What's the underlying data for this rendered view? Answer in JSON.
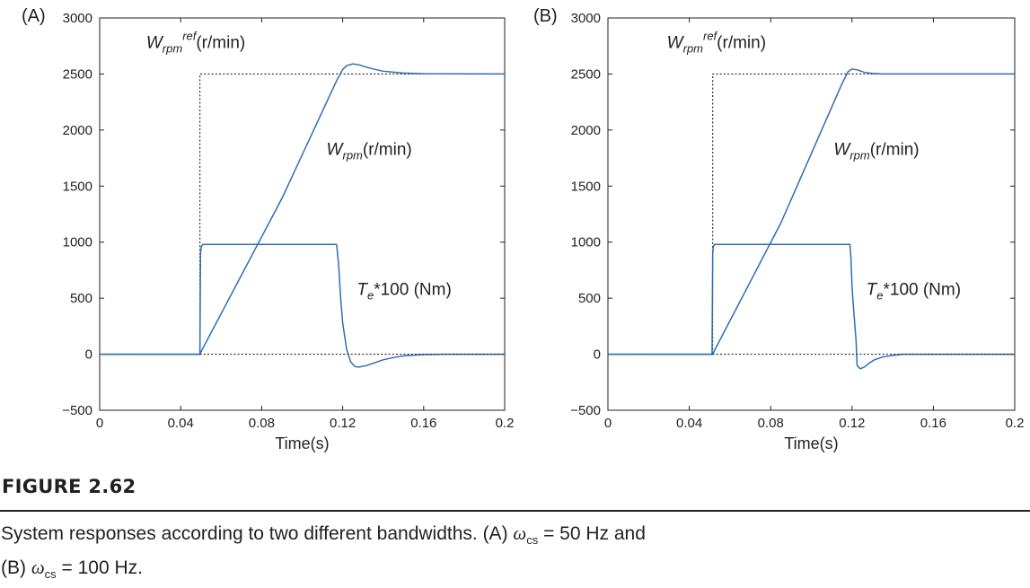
{
  "chart_data": [
    {
      "type": "line",
      "panel_label": "(A)",
      "xlabel": "Time(s)",
      "ylabel": "",
      "xlim": [
        0,
        0.2
      ],
      "ylim": [
        -500,
        3000
      ],
      "xticks": [
        0,
        0.04,
        0.08,
        0.12,
        0.16,
        0.2
      ],
      "xtick_labels": [
        "0",
        "0.04",
        "0.08",
        "0.12",
        "0.16",
        "0.2"
      ],
      "yticks": [
        -500,
        0,
        500,
        1000,
        1500,
        2000,
        2500,
        3000
      ],
      "ytick_labels": [
        "−500",
        "0",
        "500",
        "1000",
        "1500",
        "2000",
        "2500",
        "3000"
      ],
      "grid": false,
      "series": [
        {
          "name": "Wrpm ref (r/min)",
          "style": "dotted",
          "color": "#231f20",
          "x": [
            0,
            0.0495,
            0.0495,
            0.2
          ],
          "y": [
            0,
            0,
            2500,
            2500
          ]
        },
        {
          "name": "Wrpm (r/min)",
          "style": "solid",
          "color": "#2e6db4",
          "x": [
            0,
            0.0495,
            0.05,
            0.09,
            0.117,
            0.12,
            0.122,
            0.125,
            0.128,
            0.131,
            0.135,
            0.14,
            0.15,
            0.16,
            0.2
          ],
          "y": [
            0,
            0,
            20,
            1390,
            2440,
            2540,
            2575,
            2590,
            2582,
            2565,
            2545,
            2525,
            2508,
            2502,
            2500
          ]
        },
        {
          "name": "Te*100 (Nm)",
          "style": "solid",
          "color": "#2e6db4",
          "x": [
            0,
            0.0495,
            0.0498,
            0.0502,
            0.051,
            0.06,
            0.1,
            0.117,
            0.118,
            0.119,
            0.12,
            0.122,
            0.124,
            0.126,
            0.128,
            0.132,
            0.136,
            0.14,
            0.145,
            0.15,
            0.155,
            0.16,
            0.17,
            0.2
          ],
          "y": [
            0,
            0,
            900,
            960,
            980,
            980,
            980,
            980,
            800,
            500,
            280,
            40,
            -70,
            -110,
            -115,
            -100,
            -75,
            -50,
            -30,
            -15,
            -8,
            -3,
            0,
            0
          ]
        },
        {
          "name": "zero reference",
          "style": "dotted",
          "color": "#231f20",
          "x": [
            0.0495,
            0.2
          ],
          "y": [
            0,
            0
          ]
        }
      ],
      "annotations": [
        {
          "text_main": "W",
          "text_sub": "rpm",
          "text_sup": "ref",
          "text_after": "(r/min)",
          "x": 0.023,
          "y": 2730
        },
        {
          "text_main": "W",
          "text_sub": "rpm",
          "text_after": "(r/min)",
          "x": 0.112,
          "y": 1780
        },
        {
          "text_main": "T",
          "text_sub": "e",
          "text_after": "*100 (Nm)",
          "x": 0.127,
          "y": 530
        }
      ]
    },
    {
      "type": "line",
      "panel_label": "(B)",
      "xlabel": "Time(s)",
      "ylabel": "",
      "xlim": [
        0,
        0.2
      ],
      "ylim": [
        -500,
        3000
      ],
      "xticks": [
        0,
        0.04,
        0.08,
        0.12,
        0.16,
        0.2
      ],
      "xtick_labels": [
        "0",
        "0.04",
        "0.08",
        "0.12",
        "0.16",
        "0.2"
      ],
      "yticks": [
        -500,
        0,
        500,
        1000,
        1500,
        2000,
        2500,
        3000
      ],
      "ytick_labels": [
        "−500",
        "0",
        "500",
        "1000",
        "1500",
        "2000",
        "2500",
        "3000"
      ],
      "grid": false,
      "series": [
        {
          "name": "Wrpm ref (r/min)",
          "style": "dotted",
          "color": "#231f20",
          "x": [
            0,
            0.0515,
            0.0515,
            0.2
          ],
          "y": [
            0,
            0,
            2500,
            2500
          ]
        },
        {
          "name": "Wrpm (r/min)",
          "style": "solid",
          "color": "#2e6db4",
          "x": [
            0,
            0.0515,
            0.052,
            0.085,
            0.115,
            0.118,
            0.12,
            0.123,
            0.126,
            0.13,
            0.135,
            0.14,
            0.2
          ],
          "y": [
            0,
            0,
            20,
            1170,
            2410,
            2520,
            2545,
            2535,
            2515,
            2505,
            2500,
            2500,
            2500
          ]
        },
        {
          "name": "Te*100 (Nm)",
          "style": "solid",
          "color": "#2e6db4",
          "x": [
            0,
            0.0512,
            0.0515,
            0.0518,
            0.0525,
            0.06,
            0.1,
            0.119,
            0.1195,
            0.12,
            0.121,
            0.122,
            0.1225,
            0.124,
            0.126,
            0.128,
            0.131,
            0.135,
            0.14,
            0.145,
            0.2
          ],
          "y": [
            0,
            0,
            900,
            960,
            980,
            980,
            980,
            980,
            850,
            600,
            350,
            120,
            -100,
            -130,
            -115,
            -85,
            -50,
            -25,
            -10,
            0,
            0
          ]
        },
        {
          "name": "zero reference",
          "style": "dotted",
          "color": "#231f20",
          "x": [
            0.0515,
            0.2
          ],
          "y": [
            0,
            0
          ]
        }
      ],
      "annotations": [
        {
          "text_main": "W",
          "text_sub": "rpm",
          "text_sup": "ref",
          "text_after": "(r/min)",
          "x": 0.029,
          "y": 2730
        },
        {
          "text_main": "W",
          "text_sub": "rpm",
          "text_after": "(r/min)",
          "x": 0.111,
          "y": 1780
        },
        {
          "text_main": "T",
          "text_sub": "e",
          "text_after": "*100 (Nm)",
          "x": 0.127,
          "y": 530
        }
      ]
    }
  ],
  "figure_label": "FIGURE 2.62",
  "caption": {
    "line1_before": "System responses according to two different bandwidths. (A) ",
    "line1_omega": "ω",
    "line1_sub": "cs",
    "line1_after": " = 50 Hz and",
    "line2_before": "(B) ",
    "line2_omega": "ω",
    "line2_sub": "cs",
    "line2_after": " = 100 Hz."
  }
}
